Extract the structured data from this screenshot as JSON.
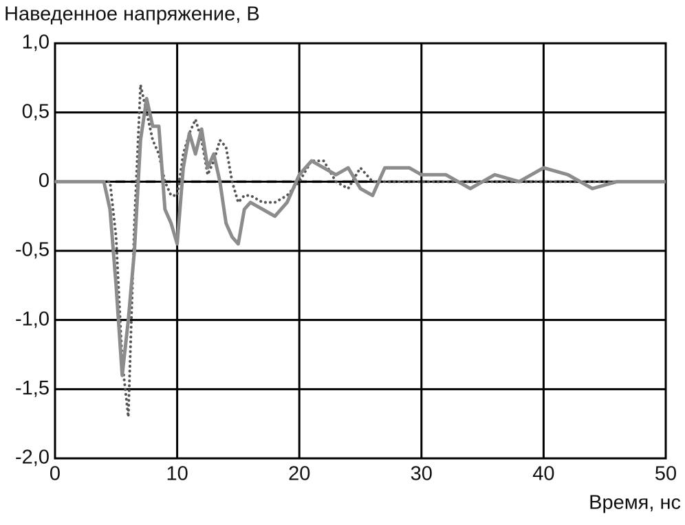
{
  "chart_data": {
    "type": "line",
    "title": "Наведенное напряжение, В",
    "xlabel": "Время, нс",
    "x": [
      0,
      1,
      2,
      3,
      4,
      4.5,
      5,
      5.5,
      6,
      6.5,
      7,
      7.5,
      8,
      8.5,
      9,
      9.5,
      10,
      10.5,
      11,
      11.5,
      12,
      12.5,
      13,
      13.5,
      14,
      14.5,
      15,
      15.5,
      16,
      17,
      18,
      19,
      20,
      21,
      22,
      23,
      24,
      25,
      26,
      27,
      28,
      29,
      30,
      32,
      34,
      36,
      38,
      40,
      42,
      44,
      46,
      48,
      50
    ],
    "series": [
      {
        "color": "#8c8c8c",
        "style": "solid",
        "values": [
          0,
          0,
          0,
          0,
          0,
          -0.2,
          -0.75,
          -1.4,
          -1.0,
          -0.5,
          0.3,
          0.6,
          0.4,
          0.4,
          -0.2,
          -0.3,
          -0.45,
          0.1,
          0.35,
          0.2,
          0.38,
          0.1,
          0.2,
          0.0,
          -0.3,
          -0.4,
          -0.45,
          -0.2,
          -0.15,
          -0.2,
          -0.25,
          -0.15,
          0.05,
          0.15,
          0.1,
          0.05,
          0.1,
          -0.05,
          -0.1,
          0.1,
          0.1,
          0.1,
          0.05,
          0.05,
          -0.05,
          0.05,
          0.0,
          0.1,
          0.05,
          -0.05,
          0.0,
          0.0,
          0.0
        ]
      },
      {
        "color": "#555555",
        "style": "dotted",
        "values": [
          0,
          0,
          0,
          0,
          0,
          0,
          -0.4,
          -1.3,
          -1.7,
          -0.3,
          0.7,
          0.5,
          0.3,
          0.2,
          0.0,
          -0.1,
          -0.1,
          0.2,
          0.35,
          0.45,
          0.3,
          0.05,
          0.15,
          0.3,
          0.25,
          0.0,
          -0.15,
          -0.1,
          -0.1,
          -0.15,
          -0.15,
          -0.1,
          0.0,
          0.15,
          0.15,
          0.0,
          -0.05,
          0.1,
          0.0,
          0.0,
          0,
          0,
          0,
          0,
          0,
          0,
          0,
          0,
          0,
          0,
          0,
          0,
          0
        ]
      },
      {
        "color": "#000000",
        "style": "dashed",
        "values": [
          0,
          0,
          0,
          0,
          0,
          0,
          0,
          0,
          0,
          0,
          0,
          0,
          0,
          0,
          0,
          0,
          0,
          0,
          0,
          0,
          0,
          0,
          0,
          0,
          0,
          0,
          0,
          0,
          0,
          0,
          0,
          0,
          0,
          0,
          0,
          0,
          0,
          0,
          0,
          0,
          0,
          0,
          0,
          0,
          0,
          0,
          0,
          0,
          0,
          0,
          0,
          0,
          0
        ]
      }
    ],
    "xlim": [
      0,
      50
    ],
    "xticks": [
      0,
      10,
      20,
      30,
      40,
      50
    ],
    "ylim": [
      -2,
      1
    ],
    "yticks": [
      {
        "value": -2,
        "label": "-2,0"
      },
      {
        "value": -1.5,
        "label": "-1,5"
      },
      {
        "value": -1,
        "label": "-1,0"
      },
      {
        "value": -0.5,
        "label": "-0,5"
      },
      0,
      {
        "value": 0.5,
        "label": "0,5"
      },
      {
        "value": 1,
        "label": "1,0"
      }
    ],
    "grid": true
  }
}
